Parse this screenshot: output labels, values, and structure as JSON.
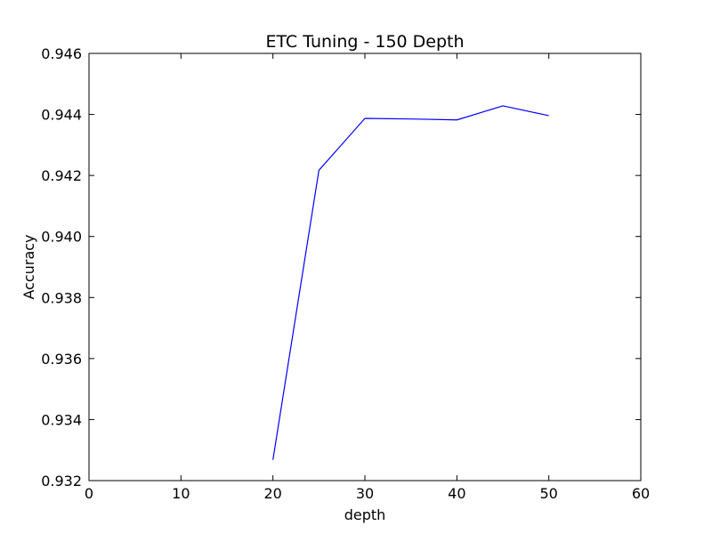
{
  "chart_data": {
    "type": "line",
    "title": "ETC Tuning - 150 Depth",
    "xlabel": "depth",
    "ylabel": "Accuracy",
    "xlim": [
      0,
      60
    ],
    "ylim": [
      0.932,
      0.946
    ],
    "x_ticks": [
      0,
      10,
      20,
      30,
      40,
      50,
      60
    ],
    "x_tick_labels": [
      "0",
      "10",
      "20",
      "30",
      "40",
      "50",
      "60"
    ],
    "y_ticks": [
      0.932,
      0.934,
      0.936,
      0.938,
      0.94,
      0.942,
      0.944,
      0.946
    ],
    "y_tick_labels": [
      "0.932",
      "0.934",
      "0.936",
      "0.938",
      "0.940",
      "0.942",
      "0.944",
      "0.946"
    ],
    "grid": false,
    "legend": "none",
    "series": [
      {
        "color": "#0000ff",
        "x": [
          20,
          25,
          30,
          35,
          40,
          45,
          50
        ],
        "y": [
          0.93268,
          0.94217,
          0.94387,
          0.94385,
          0.94382,
          0.94428,
          0.94396
        ]
      }
    ]
  }
}
